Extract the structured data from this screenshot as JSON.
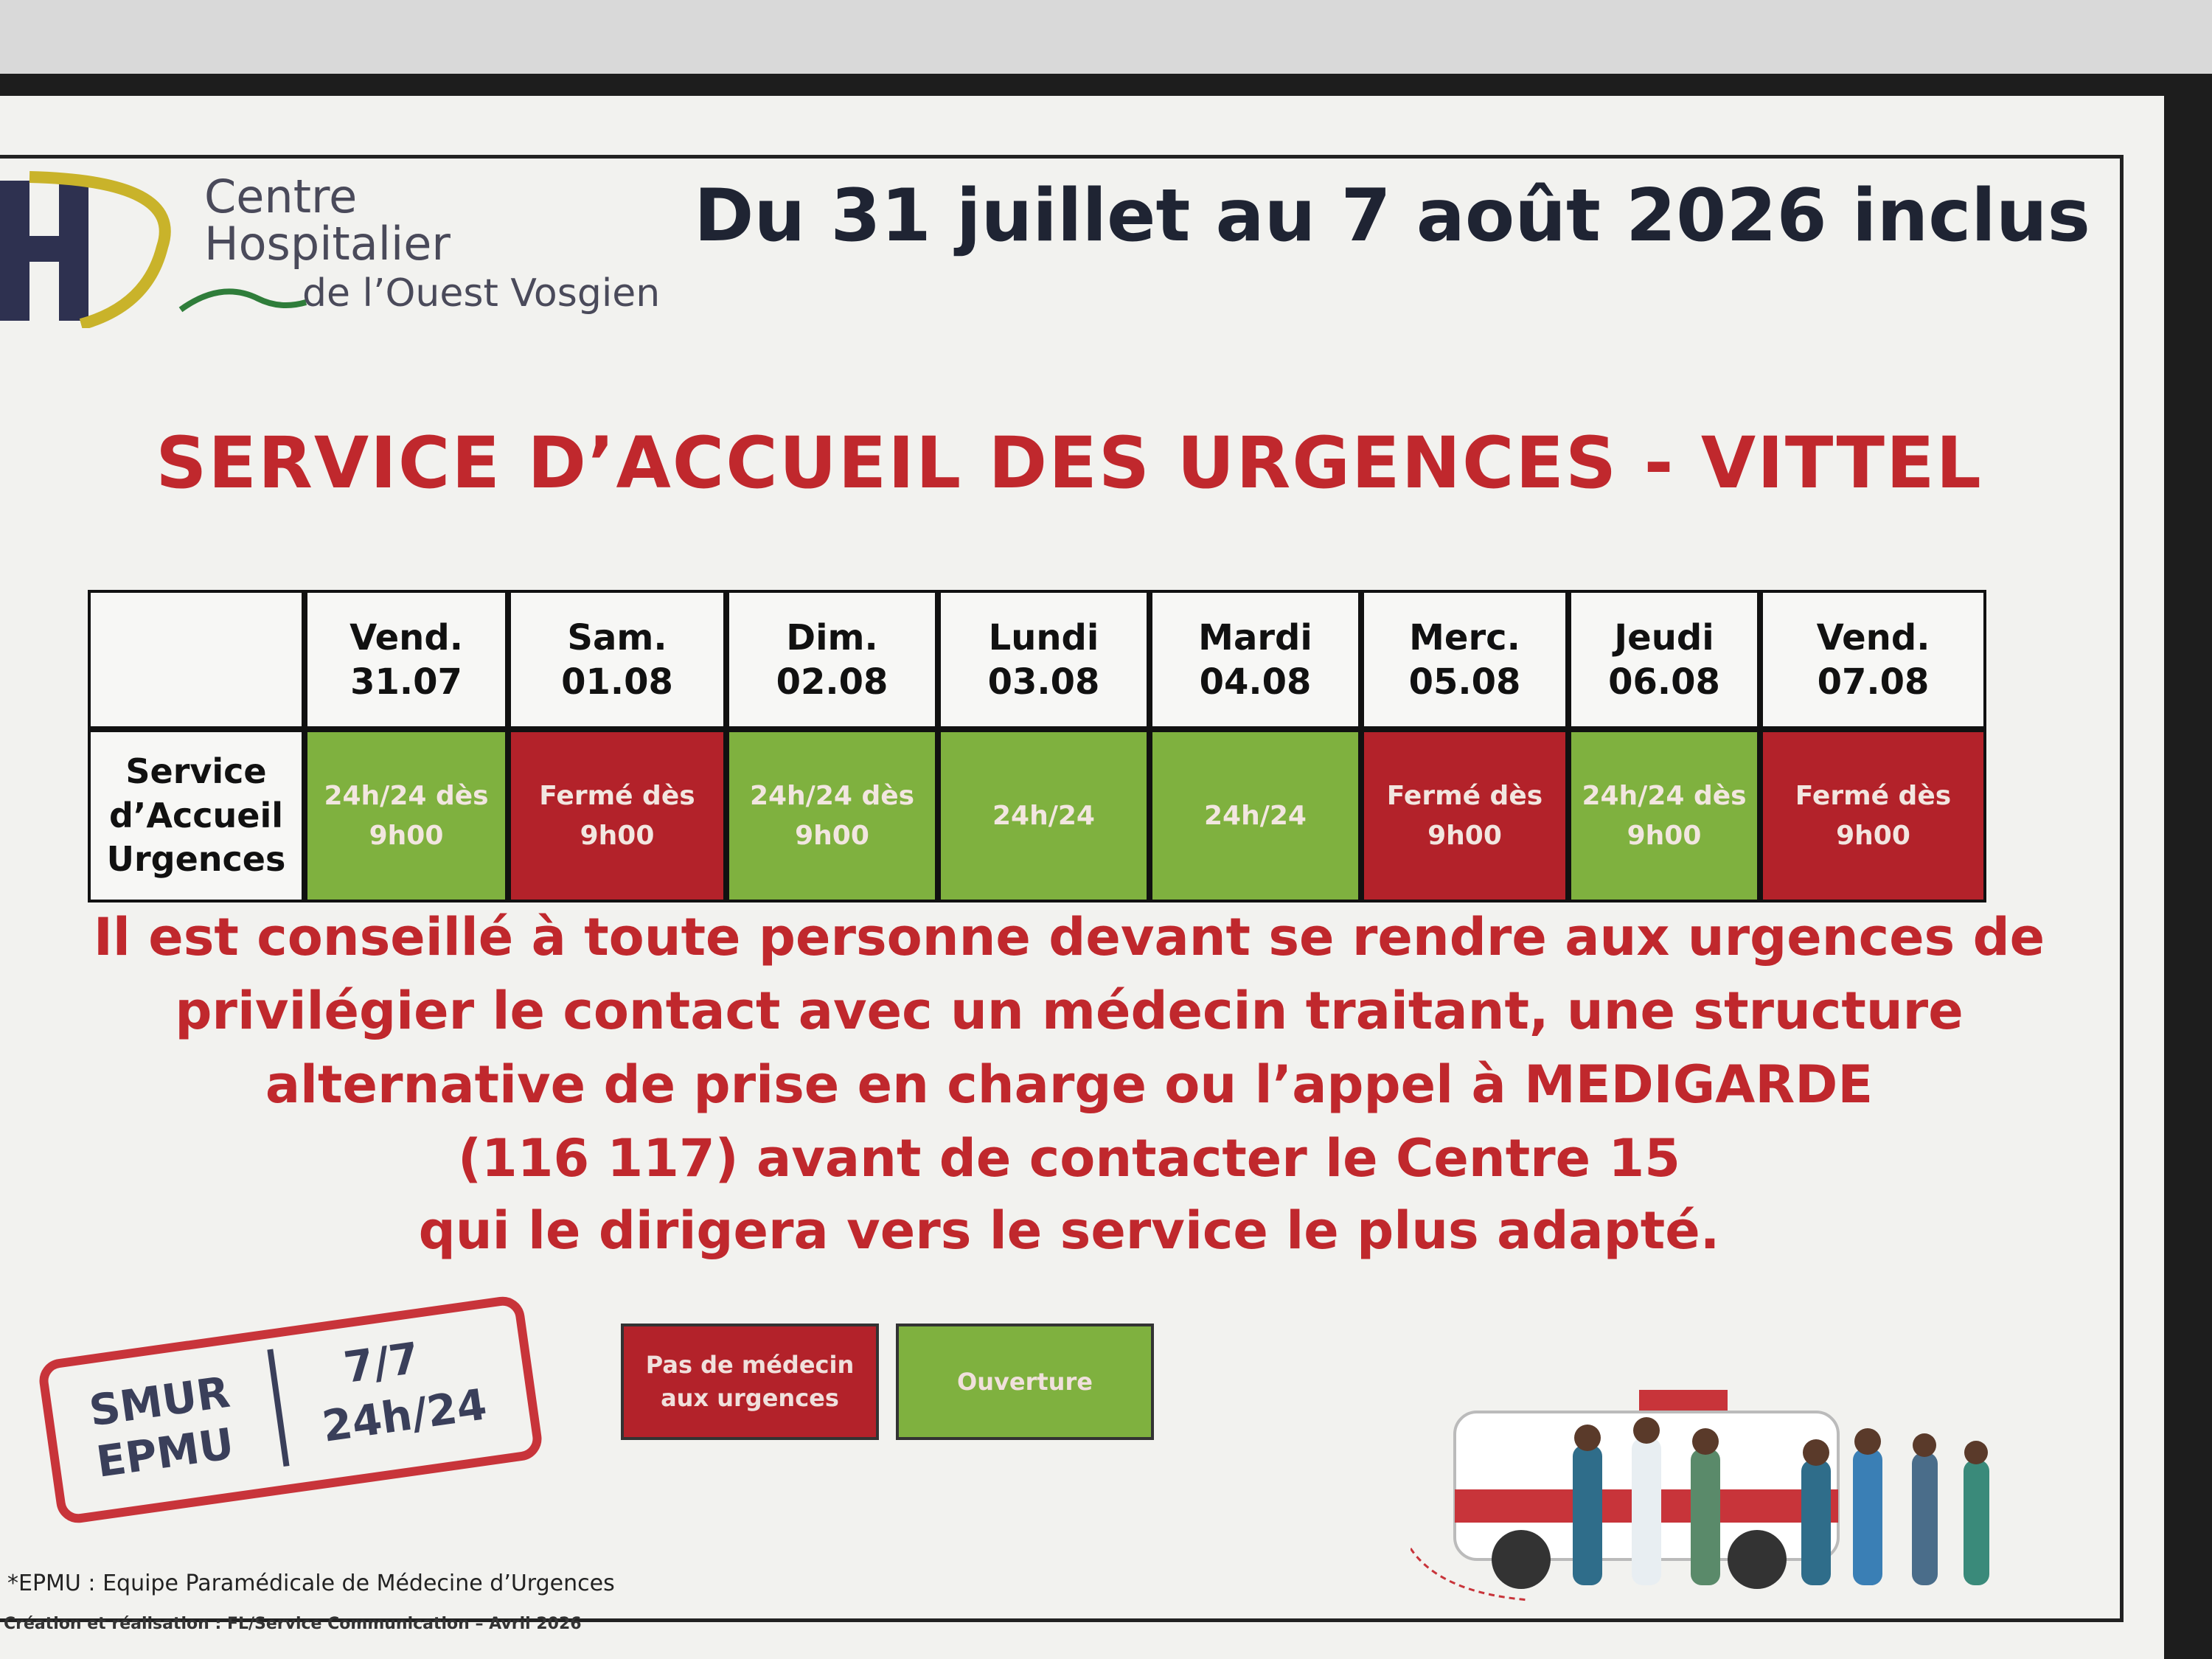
{
  "header": {
    "logo": [
      "Centre",
      "Hospitalier",
      "de l’Ouest Vosgien"
    ],
    "date_range": "Du 31 juillet au 7 août 2026 inclus"
  },
  "title": "SERVICE D’ACCUEIL DES URGENCES - VITTEL",
  "table": {
    "row_label": [
      "Service",
      "d’Accueil",
      "Urgences"
    ],
    "columns": [
      {
        "day": "Vend.",
        "date": "31.07"
      },
      {
        "day": "Sam.",
        "date": "01.08"
      },
      {
        "day": "Dim.",
        "date": "02.08"
      },
      {
        "day": "Lundi",
        "date": "03.08"
      },
      {
        "day": "Mardi",
        "date": "04.08"
      },
      {
        "day": "Merc.",
        "date": "05.08"
      },
      {
        "day": "Jeudi",
        "date": "06.08"
      },
      {
        "day": "Vend.",
        "date": "07.08"
      }
    ],
    "cells": [
      {
        "text": [
          "24h/24 dès",
          "9h00"
        ],
        "color": "#7fb13f"
      },
      {
        "text": [
          "Fermé dès",
          "9h00"
        ],
        "color": "#b3222a"
      },
      {
        "text": [
          "24h/24 dès",
          "9h00"
        ],
        "color": "#7fb13f"
      },
      {
        "text": [
          "24h/24"
        ],
        "color": "#7fb13f"
      },
      {
        "text": [
          "24h/24"
        ],
        "color": "#7fb13f"
      },
      {
        "text": [
          "Fermé dès",
          "9h00"
        ],
        "color": "#b3222a"
      },
      {
        "text": [
          "24h/24 dès",
          "9h00"
        ],
        "color": "#7fb13f"
      },
      {
        "text": [
          "Fermé dès",
          "9h00"
        ],
        "color": "#b3222a"
      }
    ]
  },
  "notice": [
    "Il est conseillé à toute personne devant se rendre aux urgences de",
    "privilégier le contact avec un médecin traitant, une structure",
    "alternative de prise en charge ou l’appel à MEDIGARDE",
    "(116 117) avant de contacter le Centre 15",
    "qui le dirigera vers le service le plus adapté."
  ],
  "smur": {
    "left": [
      "SMUR",
      "EPMU"
    ],
    "right": [
      "7/7",
      "24h/24"
    ]
  },
  "legend": [
    {
      "label": [
        "Pas de médecin",
        "aux urgences"
      ],
      "color": "#b3222a"
    },
    {
      "label": [
        "Ouverture"
      ],
      "color": "#7fb13f"
    }
  ],
  "footer": {
    "footnote": "*EPMU : Equipe Paramédicale de Médecine d’Urgences",
    "credit": "Création et réalisation : FL/Service Communication – Avril 2026"
  }
}
